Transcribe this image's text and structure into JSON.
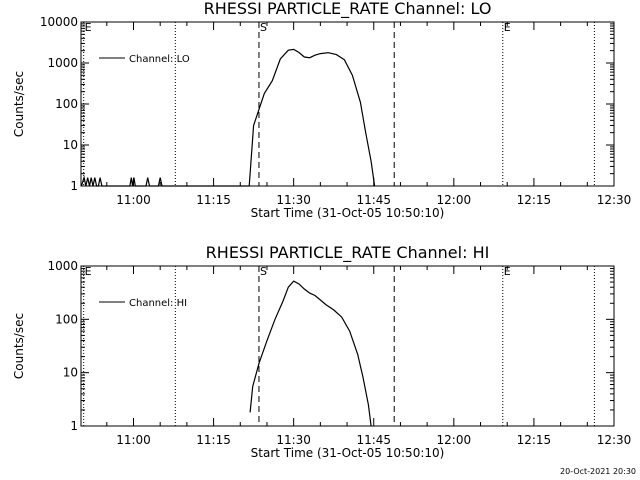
{
  "footer": {
    "date": "20-Oct-2021 20:30"
  },
  "chart_data": [
    {
      "type": "line",
      "title": "RHESSI PARTICLE_RATE Channel: LO",
      "xlabel": "Start Time (31-Oct-05 10:50:10)",
      "ylabel": "Counts/sec",
      "yscale": "log",
      "xlim": [
        "10:50:10",
        "12:30"
      ],
      "ylim": [
        1,
        10000
      ],
      "xticks": [
        "11:00",
        "11:15",
        "11:30",
        "11:45",
        "12:00",
        "12:15",
        "12:30"
      ],
      "yticks": [
        "1",
        "10",
        "100",
        "1000",
        "10000"
      ],
      "legend": {
        "label": "Channel: LO",
        "position": "top-left"
      },
      "markers": [
        {
          "label": "E",
          "time": "10:50:40",
          "style": "dotted"
        },
        {
          "label": "",
          "time": "11:07:50",
          "style": "dotted"
        },
        {
          "label": "S",
          "time": "11:23:30",
          "style": "dashed"
        },
        {
          "label": "",
          "time": "11:48:50",
          "style": "dashed"
        },
        {
          "label": "E",
          "time": "12:09:10",
          "style": "dotted"
        },
        {
          "label": "",
          "time": "12:26:20",
          "style": "dotted"
        }
      ],
      "series": [
        {
          "name": "Channel: LO",
          "points": [
            [
              "10:50:15",
              1
            ],
            [
              "10:50:45",
              1.6
            ],
            [
              "10:51:05",
              1
            ],
            [
              "10:51:25",
              1.6
            ],
            [
              "10:51:45",
              1
            ],
            [
              "10:52:05",
              1.6
            ],
            [
              "10:52:25",
              1
            ],
            [
              "10:52:45",
              1.6
            ],
            [
              "10:53:05",
              1
            ],
            [
              "10:53:25",
              1
            ],
            [
              "10:53:45",
              1.6
            ],
            [
              "10:54:05",
              1
            ],
            [
              "10:59:20",
              1
            ],
            [
              "10:59:35",
              1.6
            ],
            [
              "10:59:50",
              1
            ],
            [
              "11:00:05",
              1.6
            ],
            [
              "11:00:20",
              1
            ],
            [
              "11:02:20",
              1
            ],
            [
              "11:02:40",
              1.6
            ],
            [
              "11:03:00",
              1
            ],
            [
              "11:04:40",
              1
            ],
            [
              "11:05:00",
              1.6
            ],
            [
              "11:05:20",
              1
            ],
            [
              "11:21:40",
              1
            ],
            [
              "11:22:30",
              30
            ],
            [
              "11:24:30",
              180
            ],
            [
              "11:26:00",
              370
            ],
            [
              "11:27:30",
              1250
            ],
            [
              "11:29:00",
              2050
            ],
            [
              "11:30:00",
              2150
            ],
            [
              "11:31:00",
              1800
            ],
            [
              "11:32:00",
              1400
            ],
            [
              "11:33:00",
              1350
            ],
            [
              "11:34:00",
              1550
            ],
            [
              "11:35:00",
              1700
            ],
            [
              "11:36:30",
              1780
            ],
            [
              "11:38:00",
              1600
            ],
            [
              "11:39:30",
              1200
            ],
            [
              "11:41:00",
              500
            ],
            [
              "11:42:30",
              110
            ],
            [
              "11:43:30",
              20
            ],
            [
              "11:44:30",
              4
            ],
            [
              "11:45:10",
              1
            ]
          ]
        }
      ]
    },
    {
      "type": "line",
      "title": "RHESSI PARTICLE_RATE Channel: HI",
      "xlabel": "Start Time (31-Oct-05 10:50:10)",
      "ylabel": "Counts/sec",
      "yscale": "log",
      "xlim": [
        "10:50:10",
        "12:30"
      ],
      "ylim": [
        1,
        1000
      ],
      "xticks": [
        "11:00",
        "11:15",
        "11:30",
        "11:45",
        "12:00",
        "12:15",
        "12:30"
      ],
      "yticks": [
        "1",
        "10",
        "100",
        "1000"
      ],
      "legend": {
        "label": "Channel: HI",
        "position": "top-left"
      },
      "markers": [
        {
          "label": "E",
          "time": "10:50:40",
          "style": "dotted"
        },
        {
          "label": "",
          "time": "11:07:50",
          "style": "dotted"
        },
        {
          "label": "S",
          "time": "11:23:30",
          "style": "dashed"
        },
        {
          "label": "",
          "time": "11:48:50",
          "style": "dashed"
        },
        {
          "label": "E",
          "time": "12:09:10",
          "style": "dotted"
        },
        {
          "label": "",
          "time": "12:26:20",
          "style": "dotted"
        }
      ],
      "series": [
        {
          "name": "Channel: HI",
          "points": [
            [
              "11:21:50",
              1.8
            ],
            [
              "11:22:20",
              5.5
            ],
            [
              "11:23:30",
              15
            ],
            [
              "11:25:00",
              40
            ],
            [
              "11:26:30",
              100
            ],
            [
              "11:28:00",
              220
            ],
            [
              "11:29:00",
              400
            ],
            [
              "11:30:00",
              520
            ],
            [
              "11:31:00",
              460
            ],
            [
              "11:32:00",
              370
            ],
            [
              "11:33:00",
              310
            ],
            [
              "11:34:00",
              280
            ],
            [
              "11:35:00",
              230
            ],
            [
              "11:36:00",
              190
            ],
            [
              "11:37:30",
              150
            ],
            [
              "11:39:00",
              110
            ],
            [
              "11:40:30",
              60
            ],
            [
              "11:42:00",
              22
            ],
            [
              "11:43:00",
              8
            ],
            [
              "11:44:00",
              2.5
            ],
            [
              "11:44:30",
              1
            ]
          ]
        }
      ]
    }
  ]
}
